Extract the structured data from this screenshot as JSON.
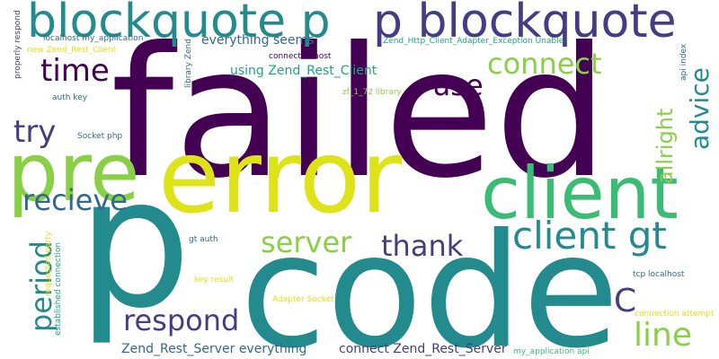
{
  "palette": {
    "dark_purple": "#440154",
    "indigo": "#433d83",
    "blue": "#31688e",
    "teal": "#238a8d",
    "green_teal": "#20a386",
    "green": "#3bbc74",
    "lime": "#8ad046",
    "yellow": "#dde318"
  },
  "words": [
    {
      "text": "failed",
      "color": "#440154"
    },
    {
      "text": "p",
      "color": "#238a8d"
    },
    {
      "text": "code",
      "color": "#238a8d"
    },
    {
      "text": "error",
      "color": "#dde318"
    },
    {
      "text": "pre",
      "color": "#8ad046"
    },
    {
      "text": "client",
      "color": "#3bbc74"
    },
    {
      "text": "blockquote p",
      "color": "#238a8d"
    },
    {
      "text": "p blockquote",
      "color": "#433d83"
    },
    {
      "text": "client gt",
      "color": "#238a8d"
    },
    {
      "text": "time",
      "color": "#440154"
    },
    {
      "text": "connect",
      "color": "#8ad046"
    },
    {
      "text": "use",
      "color": "#440154"
    },
    {
      "text": "allright",
      "color": "#8ad046"
    },
    {
      "text": "advice",
      "color": "#238a8d"
    },
    {
      "text": "try",
      "color": "#433d83"
    },
    {
      "text": "recieve",
      "color": "#31688e"
    },
    {
      "text": "server",
      "color": "#8ad046"
    },
    {
      "text": "thank",
      "color": "#433d83"
    },
    {
      "text": "period",
      "color": "#238a8d"
    },
    {
      "text": "respond",
      "color": "#433d83"
    },
    {
      "text": "C",
      "color": "#433d83"
    },
    {
      "text": "line",
      "color": "#8ad046"
    },
    {
      "text": "everything seems",
      "color": "#31688e"
    },
    {
      "text": "using Zend_Rest_Client",
      "color": "#20a386"
    },
    {
      "text": "Zend_Rest_Server everything",
      "color": "#31688e"
    },
    {
      "text": "connect Zend_Rest_Server",
      "color": "#433d83"
    },
    {
      "text": "localhost my_application",
      "color": "#31688e"
    },
    {
      "text": "new Zend_Rest_Client",
      "color": "#dde318"
    },
    {
      "text": "properly respond",
      "color": "#433d83"
    },
    {
      "text": "library Zend",
      "color": "#31688e"
    },
    {
      "text": "Zend_Http_Client_Adapter_Exception Unable",
      "color": "#20a386"
    },
    {
      "text": "api index",
      "color": "#31688e"
    },
    {
      "text": "zf_1_72 library",
      "color": "#8ad046"
    },
    {
      "text": "auth key",
      "color": "#31688e"
    },
    {
      "text": "connected host",
      "color": "#440154"
    },
    {
      "text": "Socket php",
      "color": "#31688e"
    },
    {
      "text": "gt auth",
      "color": "#31688e"
    },
    {
      "text": "requested party",
      "color": "#dde318"
    },
    {
      "text": "established connection",
      "color": "#20a386"
    },
    {
      "text": "key result",
      "color": "#dde318"
    },
    {
      "text": "Adapter Socket",
      "color": "#dde318"
    },
    {
      "text": "tcp localhost",
      "color": "#31688e"
    },
    {
      "text": "connection attempt",
      "color": "#dde318"
    },
    {
      "text": "my_application api",
      "color": "#3bbc74"
    }
  ]
}
